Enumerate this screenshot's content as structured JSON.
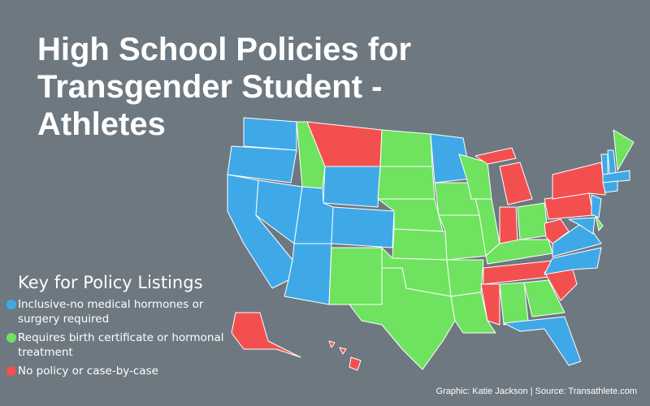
{
  "header": {
    "title": "High School Policies for Transgender Student - Athletes"
  },
  "legend": {
    "heading": "Key for Policy Listings",
    "items": [
      {
        "label": "Inclusive-no medical hormones or surgery required",
        "color": "#3fa9e8"
      },
      {
        "label": "Requires birth certificate or hormonal treatment",
        "color": "#6fe35f"
      },
      {
        "label": "No policy or case-by-case",
        "color": "#f44f4f"
      }
    ]
  },
  "credit": "Graphic: Katie Jackson | Source: Transathlete.com"
}
